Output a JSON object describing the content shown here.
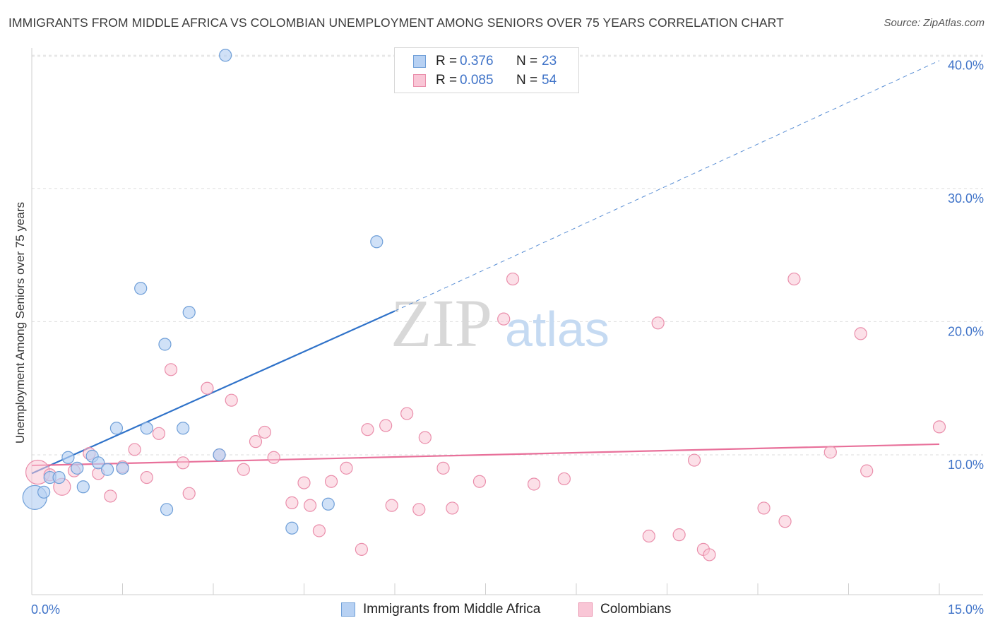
{
  "title": "IMMIGRANTS FROM MIDDLE AFRICA VS COLOMBIAN UNEMPLOYMENT AMONG SENIORS OVER 75 YEARS CORRELATION CHART",
  "source": "Source: ZipAtlas.com",
  "watermark": {
    "zip": "ZIP",
    "atlas": "atlas"
  },
  "legend": {
    "series1": {
      "r_label": "R =",
      "r_value": "0.376",
      "n_label": "N =",
      "n_value": "23"
    },
    "series2": {
      "r_label": "R =",
      "r_value": "0.085",
      "n_label": "N =",
      "n_value": "54"
    }
  },
  "bottom_legend": {
    "series1": "Immigrants from Middle Africa",
    "series2": "Colombians"
  },
  "colors": {
    "blue_fill": "#b7d1f3",
    "blue_stroke": "#6f9fd8",
    "blue_line": "#2f72c9",
    "pink_fill": "#f9c6d6",
    "pink_stroke": "#ea8eab",
    "pink_line": "#e8709a",
    "tick_text": "#3f73c8",
    "grid": "#dddddd"
  },
  "chart_data": {
    "type": "scatter",
    "xlabel": "",
    "ylabel": "Unemployment Among Seniors over 75 years",
    "xlim": [
      0,
      15
    ],
    "ylim": [
      -0.5,
      41.5
    ],
    "x_tick_labels": [
      {
        "value": 0,
        "label": "0.0%"
      },
      {
        "value": 15,
        "label": "15.0%"
      }
    ],
    "y_tick_labels": [
      {
        "value": 10,
        "label": "10.0%"
      },
      {
        "value": 20,
        "label": "20.0%"
      },
      {
        "value": 30,
        "label": "30.0%"
      },
      {
        "value": 40,
        "label": "40.0%"
      }
    ],
    "series": [
      {
        "name": "Immigrants from Middle Africa",
        "color": "blue",
        "points": [
          {
            "x": 0.05,
            "y": 6.8,
            "size": "large"
          },
          {
            "x": 0.2,
            "y": 7.2
          },
          {
            "x": 0.3,
            "y": 8.3
          },
          {
            "x": 0.45,
            "y": 8.3
          },
          {
            "x": 0.6,
            "y": 9.8
          },
          {
            "x": 0.75,
            "y": 9.0
          },
          {
            "x": 0.85,
            "y": 7.6
          },
          {
            "x": 1.0,
            "y": 9.9
          },
          {
            "x": 1.1,
            "y": 9.4
          },
          {
            "x": 1.25,
            "y": 8.9
          },
          {
            "x": 1.4,
            "y": 12.0
          },
          {
            "x": 1.5,
            "y": 9.0
          },
          {
            "x": 1.8,
            "y": 22.5
          },
          {
            "x": 1.9,
            "y": 12.0
          },
          {
            "x": 2.2,
            "y": 18.3
          },
          {
            "x": 2.23,
            "y": 5.9
          },
          {
            "x": 2.5,
            "y": 12.0
          },
          {
            "x": 2.6,
            "y": 20.7
          },
          {
            "x": 3.1,
            "y": 10.0
          },
          {
            "x": 3.2,
            "y": 40.0
          },
          {
            "x": 4.3,
            "y": 4.5
          },
          {
            "x": 4.9,
            "y": 6.3
          },
          {
            "x": 5.7,
            "y": 26.0
          }
        ]
      },
      {
        "name": "Colombians",
        "color": "pink",
        "points": [
          {
            "x": 0.1,
            "y": 8.7,
            "size": "large"
          },
          {
            "x": 0.3,
            "y": 8.5
          },
          {
            "x": 0.5,
            "y": 7.6,
            "size": "medium"
          },
          {
            "x": 0.7,
            "y": 8.8
          },
          {
            "x": 0.95,
            "y": 10.1
          },
          {
            "x": 1.1,
            "y": 8.6
          },
          {
            "x": 1.3,
            "y": 6.9
          },
          {
            "x": 1.5,
            "y": 9.1
          },
          {
            "x": 1.7,
            "y": 10.4
          },
          {
            "x": 1.9,
            "y": 8.3
          },
          {
            "x": 2.1,
            "y": 11.6
          },
          {
            "x": 2.3,
            "y": 16.4
          },
          {
            "x": 2.5,
            "y": 9.4
          },
          {
            "x": 2.6,
            "y": 7.1
          },
          {
            "x": 2.9,
            "y": 15.0
          },
          {
            "x": 3.1,
            "y": 10.0
          },
          {
            "x": 3.3,
            "y": 14.1
          },
          {
            "x": 3.5,
            "y": 8.9
          },
          {
            "x": 3.7,
            "y": 11.0
          },
          {
            "x": 3.85,
            "y": 11.7
          },
          {
            "x": 4.0,
            "y": 9.8
          },
          {
            "x": 4.3,
            "y": 6.4
          },
          {
            "x": 4.5,
            "y": 7.9
          },
          {
            "x": 4.6,
            "y": 6.2
          },
          {
            "x": 4.75,
            "y": 4.3
          },
          {
            "x": 4.95,
            "y": 8.0
          },
          {
            "x": 5.2,
            "y": 9.0
          },
          {
            "x": 5.45,
            "y": 2.9
          },
          {
            "x": 5.55,
            "y": 11.9
          },
          {
            "x": 5.85,
            "y": 12.2
          },
          {
            "x": 5.95,
            "y": 6.2
          },
          {
            "x": 6.2,
            "y": 13.1
          },
          {
            "x": 6.4,
            "y": 5.9
          },
          {
            "x": 6.5,
            "y": 11.3
          },
          {
            "x": 6.8,
            "y": 9.0
          },
          {
            "x": 6.95,
            "y": 6.0
          },
          {
            "x": 7.4,
            "y": 8.0
          },
          {
            "x": 7.8,
            "y": 20.2
          },
          {
            "x": 7.95,
            "y": 23.2
          },
          {
            "x": 8.3,
            "y": 7.8
          },
          {
            "x": 8.8,
            "y": 8.2
          },
          {
            "x": 10.2,
            "y": 3.9
          },
          {
            "x": 10.35,
            "y": 19.9
          },
          {
            "x": 10.7,
            "y": 4.0
          },
          {
            "x": 10.95,
            "y": 9.6
          },
          {
            "x": 11.1,
            "y": 2.9
          },
          {
            "x": 11.2,
            "y": 2.5
          },
          {
            "x": 12.1,
            "y": 6.0
          },
          {
            "x": 12.45,
            "y": 5.0
          },
          {
            "x": 12.6,
            "y": 23.2
          },
          {
            "x": 13.2,
            "y": 10.2
          },
          {
            "x": 13.7,
            "y": 19.1
          },
          {
            "x": 13.8,
            "y": 8.8
          },
          {
            "x": 15.0,
            "y": 12.1
          }
        ]
      }
    ],
    "trend_lines": [
      {
        "series": "Immigrants from Middle Africa",
        "solid": [
          [
            0,
            8.6
          ],
          [
            6.0,
            20.8
          ]
        ],
        "dashed": [
          [
            6.0,
            20.8
          ],
          [
            15.0,
            39.6
          ]
        ]
      },
      {
        "series": "Colombians",
        "solid": [
          [
            0,
            9.2
          ],
          [
            15.0,
            10.8
          ]
        ]
      }
    ]
  }
}
